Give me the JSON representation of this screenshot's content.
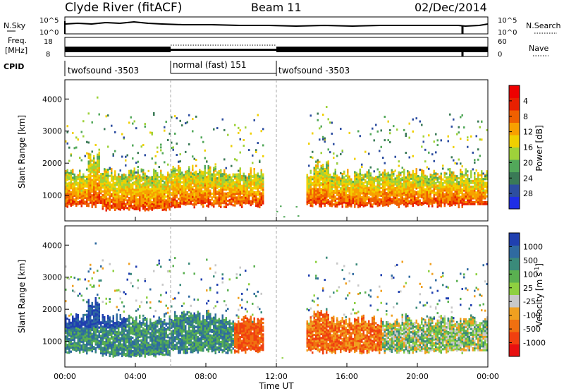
{
  "header": {
    "title": "Clyde River (fitACF)",
    "beam": "Beam 11",
    "date": "02/Dec/2014"
  },
  "noise_panel": {
    "left_label": "N.Sky",
    "right_label": "N.Search",
    "left_ticks": [
      "10^5",
      "10^0"
    ],
    "right_ticks": [
      "10^5",
      "10^0"
    ],
    "right_line_style": "dotted"
  },
  "freq_panel": {
    "left_label_1": "Freq.",
    "left_label_2": "[MHz]",
    "right_label": "Nave",
    "left_ticks": [
      "18",
      "8"
    ],
    "right_ticks": [
      "60",
      "0"
    ],
    "right_line_style": "dotted"
  },
  "cpid_panel": {
    "label": "CPID",
    "segments": [
      {
        "name": "twofsound -3503",
        "start": 0,
        "end": 6
      },
      {
        "name": "normal (fast) 151",
        "start": 6,
        "end": 12
      },
      {
        "name": "twofsound -3503",
        "start": 12,
        "end": 24
      }
    ]
  },
  "chart_data": [
    {
      "type": "heatmap",
      "quantity": "power",
      "ylabel": "Slant Range [km]",
      "ylim": [
        200,
        4600
      ],
      "yticks": [
        "1000",
        "2000",
        "3000",
        "4000"
      ],
      "colorbar": {
        "label": "Power [dB]",
        "ticks": [
          "4",
          "8",
          "12",
          "16",
          "20",
          "24",
          "28"
        ],
        "colors": [
          "#1f2ee6",
          "#2d4ea0",
          "#3a7a56",
          "#52a85a",
          "#9ed23a",
          "#f0d000",
          "#f8a000",
          "#f06000",
          "#e82000",
          "#ee0000"
        ]
      }
    },
    {
      "type": "heatmap",
      "quantity": "velocity",
      "ylabel": "Velocity [m s^-1]",
      "ylabel_left": "Slant Range [km]",
      "ylim": [
        200,
        4600
      ],
      "yticks": [
        "1000",
        "2000",
        "3000",
        "4000"
      ],
      "colorbar": {
        "label": "Velocity [m s",
        "label_sup": "-1",
        "label_end": "]",
        "ticks": [
          "1000",
          "500",
          "100",
          "25",
          "-25",
          "-100",
          "-500",
          "-1000"
        ],
        "colors": [
          "#2040b0",
          "#2f6aa0",
          "#3a8a7a",
          "#5ab050",
          "#8ed040",
          "#c8c8c8",
          "#f0a020",
          "#f07010",
          "#f04010",
          "#e81010"
        ]
      }
    }
  ],
  "time_axis": {
    "xlabel": "Time UT",
    "ticks": [
      "00:00",
      "04:00",
      "08:00",
      "12:00",
      "16:00",
      "20:00",
      "00:00"
    ],
    "xlim": [
      0,
      24
    ]
  }
}
